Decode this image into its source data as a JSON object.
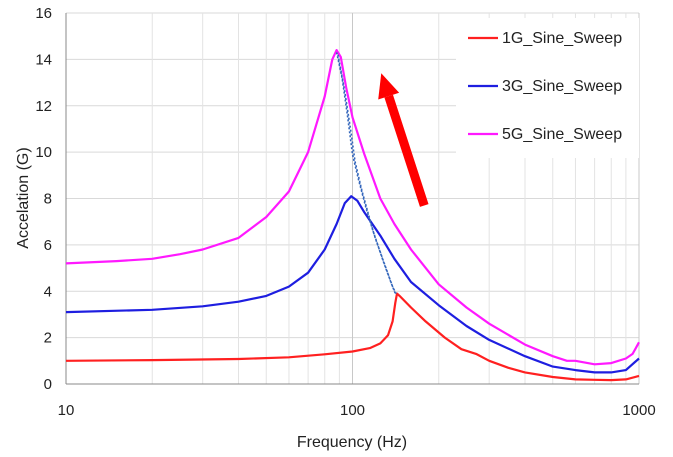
{
  "chart_data": {
    "type": "line",
    "xscale": "log",
    "xlim": [
      10,
      1000
    ],
    "ylim": [
      0,
      16
    ],
    "xlabel": "Frequency (Hz)",
    "ylabel": "Accelation (G)",
    "x_ticks": [
      "10",
      "100",
      "1000"
    ],
    "y_ticks": [
      "0",
      "2",
      "4",
      "6",
      "8",
      "10",
      "12",
      "14",
      "16"
    ],
    "grid": true,
    "legend_position": "top-right",
    "series": [
      {
        "name": "1G_Sine_Sweep",
        "color": "#ff2020",
        "points": [
          [
            10,
            1.0
          ],
          [
            20,
            1.03
          ],
          [
            40,
            1.08
          ],
          [
            60,
            1.15
          ],
          [
            80,
            1.28
          ],
          [
            100,
            1.4
          ],
          [
            115,
            1.55
          ],
          [
            125,
            1.75
          ],
          [
            133,
            2.1
          ],
          [
            138,
            2.7
          ],
          [
            141,
            3.5
          ],
          [
            143,
            3.9
          ],
          [
            146,
            3.8
          ],
          [
            160,
            3.3
          ],
          [
            180,
            2.7
          ],
          [
            210,
            2.0
          ],
          [
            240,
            1.5
          ],
          [
            270,
            1.3
          ],
          [
            300,
            1.0
          ],
          [
            350,
            0.7
          ],
          [
            400,
            0.5
          ],
          [
            500,
            0.3
          ],
          [
            600,
            0.2
          ],
          [
            700,
            0.18
          ],
          [
            800,
            0.17
          ],
          [
            900,
            0.2
          ],
          [
            1000,
            0.35
          ]
        ]
      },
      {
        "name": "3G_Sine_Sweep",
        "color": "#1e1ee0",
        "points": [
          [
            10,
            3.1
          ],
          [
            20,
            3.2
          ],
          [
            30,
            3.35
          ],
          [
            40,
            3.55
          ],
          [
            50,
            3.8
          ],
          [
            60,
            4.2
          ],
          [
            70,
            4.8
          ],
          [
            80,
            5.8
          ],
          [
            88,
            6.9
          ],
          [
            94,
            7.8
          ],
          [
            99,
            8.1
          ],
          [
            104,
            7.9
          ],
          [
            110,
            7.4
          ],
          [
            125,
            6.4
          ],
          [
            140,
            5.4
          ],
          [
            160,
            4.4
          ],
          [
            200,
            3.4
          ],
          [
            250,
            2.5
          ],
          [
            300,
            1.9
          ],
          [
            400,
            1.2
          ],
          [
            500,
            0.75
          ],
          [
            600,
            0.6
          ],
          [
            700,
            0.5
          ],
          [
            800,
            0.5
          ],
          [
            900,
            0.6
          ],
          [
            1000,
            1.1
          ]
        ]
      },
      {
        "name": "5G_Sine_Sweep",
        "color": "#ff19ff",
        "points": [
          [
            10,
            5.2
          ],
          [
            15,
            5.3
          ],
          [
            20,
            5.4
          ],
          [
            25,
            5.6
          ],
          [
            30,
            5.8
          ],
          [
            40,
            6.3
          ],
          [
            50,
            7.2
          ],
          [
            60,
            8.3
          ],
          [
            70,
            10.0
          ],
          [
            80,
            12.4
          ],
          [
            85,
            14.0
          ],
          [
            88,
            14.4
          ],
          [
            91,
            14.1
          ],
          [
            95,
            12.8
          ],
          [
            100,
            11.5
          ],
          [
            110,
            9.9
          ],
          [
            125,
            8.0
          ],
          [
            140,
            6.9
          ],
          [
            160,
            5.8
          ],
          [
            200,
            4.3
          ],
          [
            250,
            3.3
          ],
          [
            300,
            2.6
          ],
          [
            400,
            1.7
          ],
          [
            500,
            1.2
          ],
          [
            560,
            1.0
          ],
          [
            600,
            1.0
          ],
          [
            700,
            0.85
          ],
          [
            800,
            0.9
          ],
          [
            900,
            1.1
          ],
          [
            950,
            1.3
          ],
          [
            1000,
            1.8
          ]
        ]
      },
      {
        "name": "",
        "color": "#3366bb",
        "style": "dotted",
        "points": [
          [
            88,
            14.3
          ],
          [
            92,
            13.2
          ],
          [
            96,
            11.6
          ],
          [
            100,
            9.9
          ],
          [
            105,
            8.8
          ],
          [
            112,
            7.5
          ],
          [
            120,
            6.3
          ],
          [
            130,
            5.1
          ],
          [
            138,
            4.2
          ],
          [
            142,
            3.9
          ]
        ]
      },
      {
        "name": "",
        "color": "#3366bb",
        "style": "dotted",
        "points": [
          [
            89,
            14.2
          ],
          [
            94,
            12.6
          ],
          [
            99,
            10.8
          ],
          [
            102,
            9.6
          ],
          [
            108,
            8.3
          ],
          [
            118,
            6.6
          ],
          [
            128,
            5.3
          ],
          [
            136,
            4.4
          ],
          [
            141,
            3.9
          ]
        ]
      }
    ],
    "annotations": [
      {
        "type": "arrow",
        "color": "#ff0000",
        "from": [
          178,
          7.7
        ],
        "to": [
          126,
          13.4
        ]
      }
    ]
  }
}
